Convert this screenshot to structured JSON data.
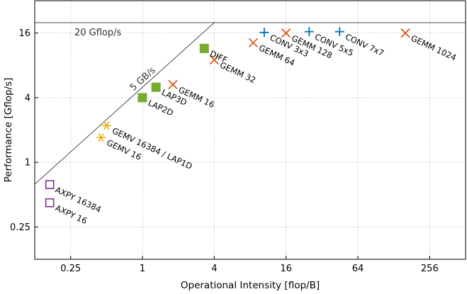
{
  "chart_data": {
    "type": "scatter",
    "title": "",
    "xlabel": "Operational Intensity [flop/B]",
    "ylabel": "Performance [Gflop/s]",
    "xscale": "log2",
    "yscale": "log2",
    "xlim": [
      0.125,
      512
    ],
    "ylim": [
      0.125,
      32
    ],
    "x_ticks": [
      {
        "value": 0.25,
        "label": "0.25"
      },
      {
        "value": 1,
        "label": "1"
      },
      {
        "value": 4,
        "label": "4"
      },
      {
        "value": 16,
        "label": "16"
      },
      {
        "value": 64,
        "label": "64"
      },
      {
        "value": 256,
        "label": "256"
      }
    ],
    "y_ticks": [
      {
        "value": 0.25,
        "label": "0.25"
      },
      {
        "value": 1,
        "label": "1"
      },
      {
        "value": 4,
        "label": "4"
      },
      {
        "value": 16,
        "label": "16"
      }
    ],
    "grid": true,
    "legend": "none",
    "rooflines": [
      {
        "type": "compute",
        "label": "20 Gflop/s",
        "value": 20
      },
      {
        "type": "bandwidth",
        "label": "5 GB/s",
        "value": 5
      }
    ],
    "colors": {
      "purple": "#7e2f8e",
      "yellow": "#edb120",
      "green": "#77ac30",
      "orange": "#d95319",
      "blue": "#0072bd"
    },
    "points": [
      {
        "label": "AXPY 16384",
        "x": 0.167,
        "y": 0.62,
        "marker": "square-open",
        "color": "purple"
      },
      {
        "label": "AXPY 16",
        "x": 0.167,
        "y": 0.42,
        "marker": "square-open",
        "color": "purple"
      },
      {
        "label": "GEMV 16384 / LAP1D",
        "x": 0.5,
        "y": 2.2,
        "marker": "asterisk",
        "color": "yellow"
      },
      {
        "label": "GEMV 16",
        "x": 0.45,
        "y": 1.7,
        "marker": "asterisk",
        "color": "yellow"
      },
      {
        "label": "LAP2D",
        "x": 1.0,
        "y": 4.0,
        "marker": "square-filled",
        "color": "green"
      },
      {
        "label": "LAP3D",
        "x": 1.3,
        "y": 5.0,
        "marker": "square-filled",
        "color": "green"
      },
      {
        "label": "DIFF",
        "x": 3.3,
        "y": 11.5,
        "marker": "square-filled",
        "color": "green"
      },
      {
        "label": "GEMM 16",
        "x": 1.8,
        "y": 5.3,
        "marker": "x",
        "color": "orange"
      },
      {
        "label": "GEMM 32",
        "x": 4.0,
        "y": 9.0,
        "marker": "x",
        "color": "orange"
      },
      {
        "label": "GEMM 64",
        "x": 8.5,
        "y": 13.0,
        "marker": "x",
        "color": "orange"
      },
      {
        "label": "GEMM 128",
        "x": 16.0,
        "y": 16.0,
        "marker": "x",
        "color": "orange"
      },
      {
        "label": "GEMM 1024",
        "x": 160.0,
        "y": 16.0,
        "marker": "x",
        "color": "orange"
      },
      {
        "label": "CONV 3x3",
        "x": 10.5,
        "y": 16.2,
        "marker": "plus",
        "color": "blue"
      },
      {
        "label": "CONV 5x5",
        "x": 25.0,
        "y": 16.5,
        "marker": "plus",
        "color": "blue"
      },
      {
        "label": "CONV 7x7",
        "x": 45.0,
        "y": 16.5,
        "marker": "plus",
        "color": "blue"
      }
    ]
  }
}
